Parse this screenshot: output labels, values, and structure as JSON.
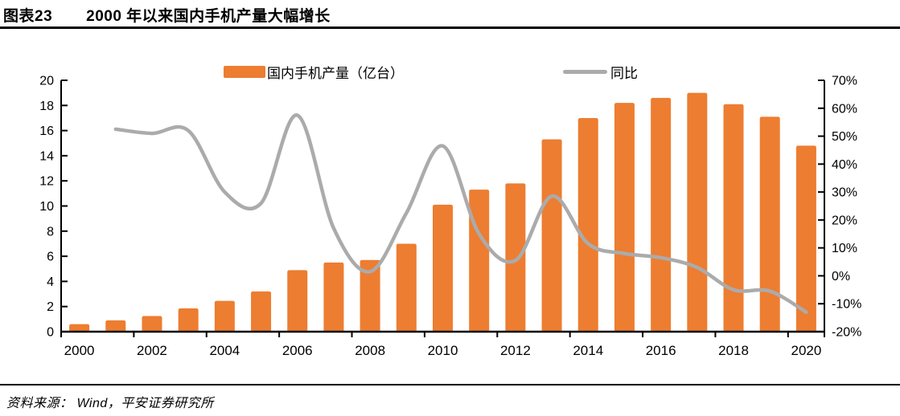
{
  "header": {
    "figure_label": "图表23",
    "title": "2000 年以来国内手机产量大幅增长"
  },
  "footer": {
    "source": "资料来源： Wind，平安证券研究所"
  },
  "colors": {
    "bar": "#ED7D31",
    "line": "#ABABAB",
    "axis": "#000000",
    "text": "#000000"
  },
  "legend": {
    "bar_label": "国内手机产量（亿台）",
    "line_label": "同比"
  },
  "chart_data": {
    "type": "combo: bar + line",
    "title": "图表23 2000 年以来国内手机产量大幅增长",
    "categories": [
      "2000",
      "2001",
      "2002",
      "2003",
      "2004",
      "2005",
      "2006",
      "2007",
      "2008",
      "2009",
      "2010",
      "2011",
      "2012",
      "2013",
      "2014",
      "2015",
      "2016",
      "2017",
      "2018",
      "2019",
      "2020"
    ],
    "series": [
      {
        "name": "国内手机产量（亿台）",
        "type": "bar",
        "axis": "left",
        "values": [
          0.6,
          0.9,
          1.25,
          1.85,
          2.45,
          3.2,
          4.9,
          5.5,
          5.7,
          7.0,
          10.1,
          11.3,
          11.8,
          15.3,
          17.0,
          18.2,
          18.6,
          19.0,
          18.1,
          17.1,
          14.8
        ]
      },
      {
        "name": "同比",
        "type": "line",
        "axis": "right",
        "unit": "%",
        "values": [
          null,
          52.5,
          51,
          52,
          30,
          26,
          57.5,
          17,
          1.5,
          22.5,
          46.5,
          15,
          5.5,
          28.5,
          11.5,
          8,
          6.5,
          3,
          -5,
          -5.5,
          -13
        ]
      }
    ],
    "left_axis": {
      "min": 0,
      "max": 20,
      "step": 2,
      "tick_labels": [
        "0",
        "2",
        "4",
        "6",
        "8",
        "10",
        "12",
        "14",
        "16",
        "18",
        "20"
      ]
    },
    "right_axis": {
      "min": -20,
      "max": 70,
      "step": 10,
      "tick_labels": [
        "-20%",
        "-10%",
        "0%",
        "10%",
        "20%",
        "30%",
        "40%",
        "50%",
        "60%",
        "70%"
      ]
    },
    "x_label_every": 2,
    "grid": false,
    "legend_position": "top-center"
  }
}
